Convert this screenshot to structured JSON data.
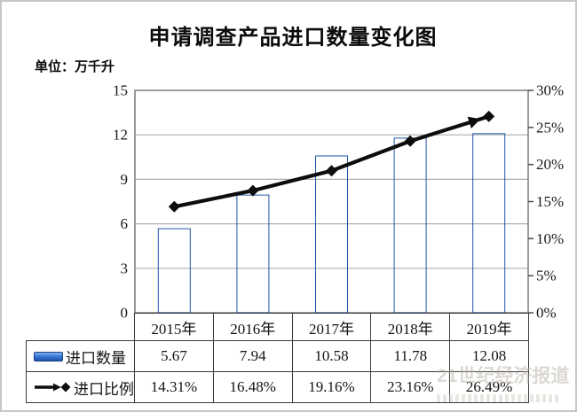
{
  "page": {
    "title": "申请调查产品进口数量变化图",
    "unit_label": "单位：万千升"
  },
  "chart_data": {
    "type": "combo",
    "title": "申请调查产品进口数量变化图",
    "unit": "万千升",
    "categories": [
      "2015年",
      "2016年",
      "2017年",
      "2018年",
      "2019年"
    ],
    "series": [
      {
        "name": "进口数量",
        "type": "bar",
        "axis": "left",
        "color": "#2f6cd0",
        "values": [
          5.67,
          7.94,
          10.58,
          11.78,
          12.08
        ]
      },
      {
        "name": "进口比例",
        "type": "line",
        "axis": "right",
        "color": "#0d0d0d",
        "marker": "diamond",
        "end_marker": "arrow",
        "values": [
          14.31,
          16.48,
          19.16,
          23.16,
          26.49
        ]
      }
    ],
    "left_axis": {
      "min": 0,
      "max": 15,
      "tick_step": 3,
      "ticks": [
        "0",
        "3",
        "6",
        "9",
        "12",
        "15"
      ],
      "grid_step": 3
    },
    "right_axis": {
      "min": 0,
      "max": 30,
      "tick_step": 5,
      "ticks": [
        "0%",
        "5%",
        "10%",
        "15%",
        "20%",
        "25%",
        "30%"
      ]
    },
    "grid": "horizontal-only",
    "legend_position": "table-left"
  },
  "table": {
    "header_row": [
      "2015年",
      "2016年",
      "2017年",
      "2018年",
      "2019年"
    ],
    "rows": [
      {
        "label": "进口数量",
        "legend_icon": "bar-swatch",
        "values": [
          "5.67",
          "7.94",
          "10.58",
          "11.78",
          "12.08"
        ]
      },
      {
        "label": "进口比例",
        "legend_icon": "arrow-diamond-line",
        "values": [
          "14.31%",
          "16.48%",
          "19.16%",
          "23.16%",
          "26.49%"
        ]
      }
    ]
  },
  "watermark": {
    "text": "21世纪经济报道"
  },
  "colors": {
    "bar_main": "#2f6cd0",
    "bar_light": "#86b4f2",
    "bar_dark": "#1e55a8",
    "line": "#0d0d0d",
    "gridline": "#adadad",
    "plot_border": "#7a7a7a",
    "table_border": "#3a3a3a"
  }
}
